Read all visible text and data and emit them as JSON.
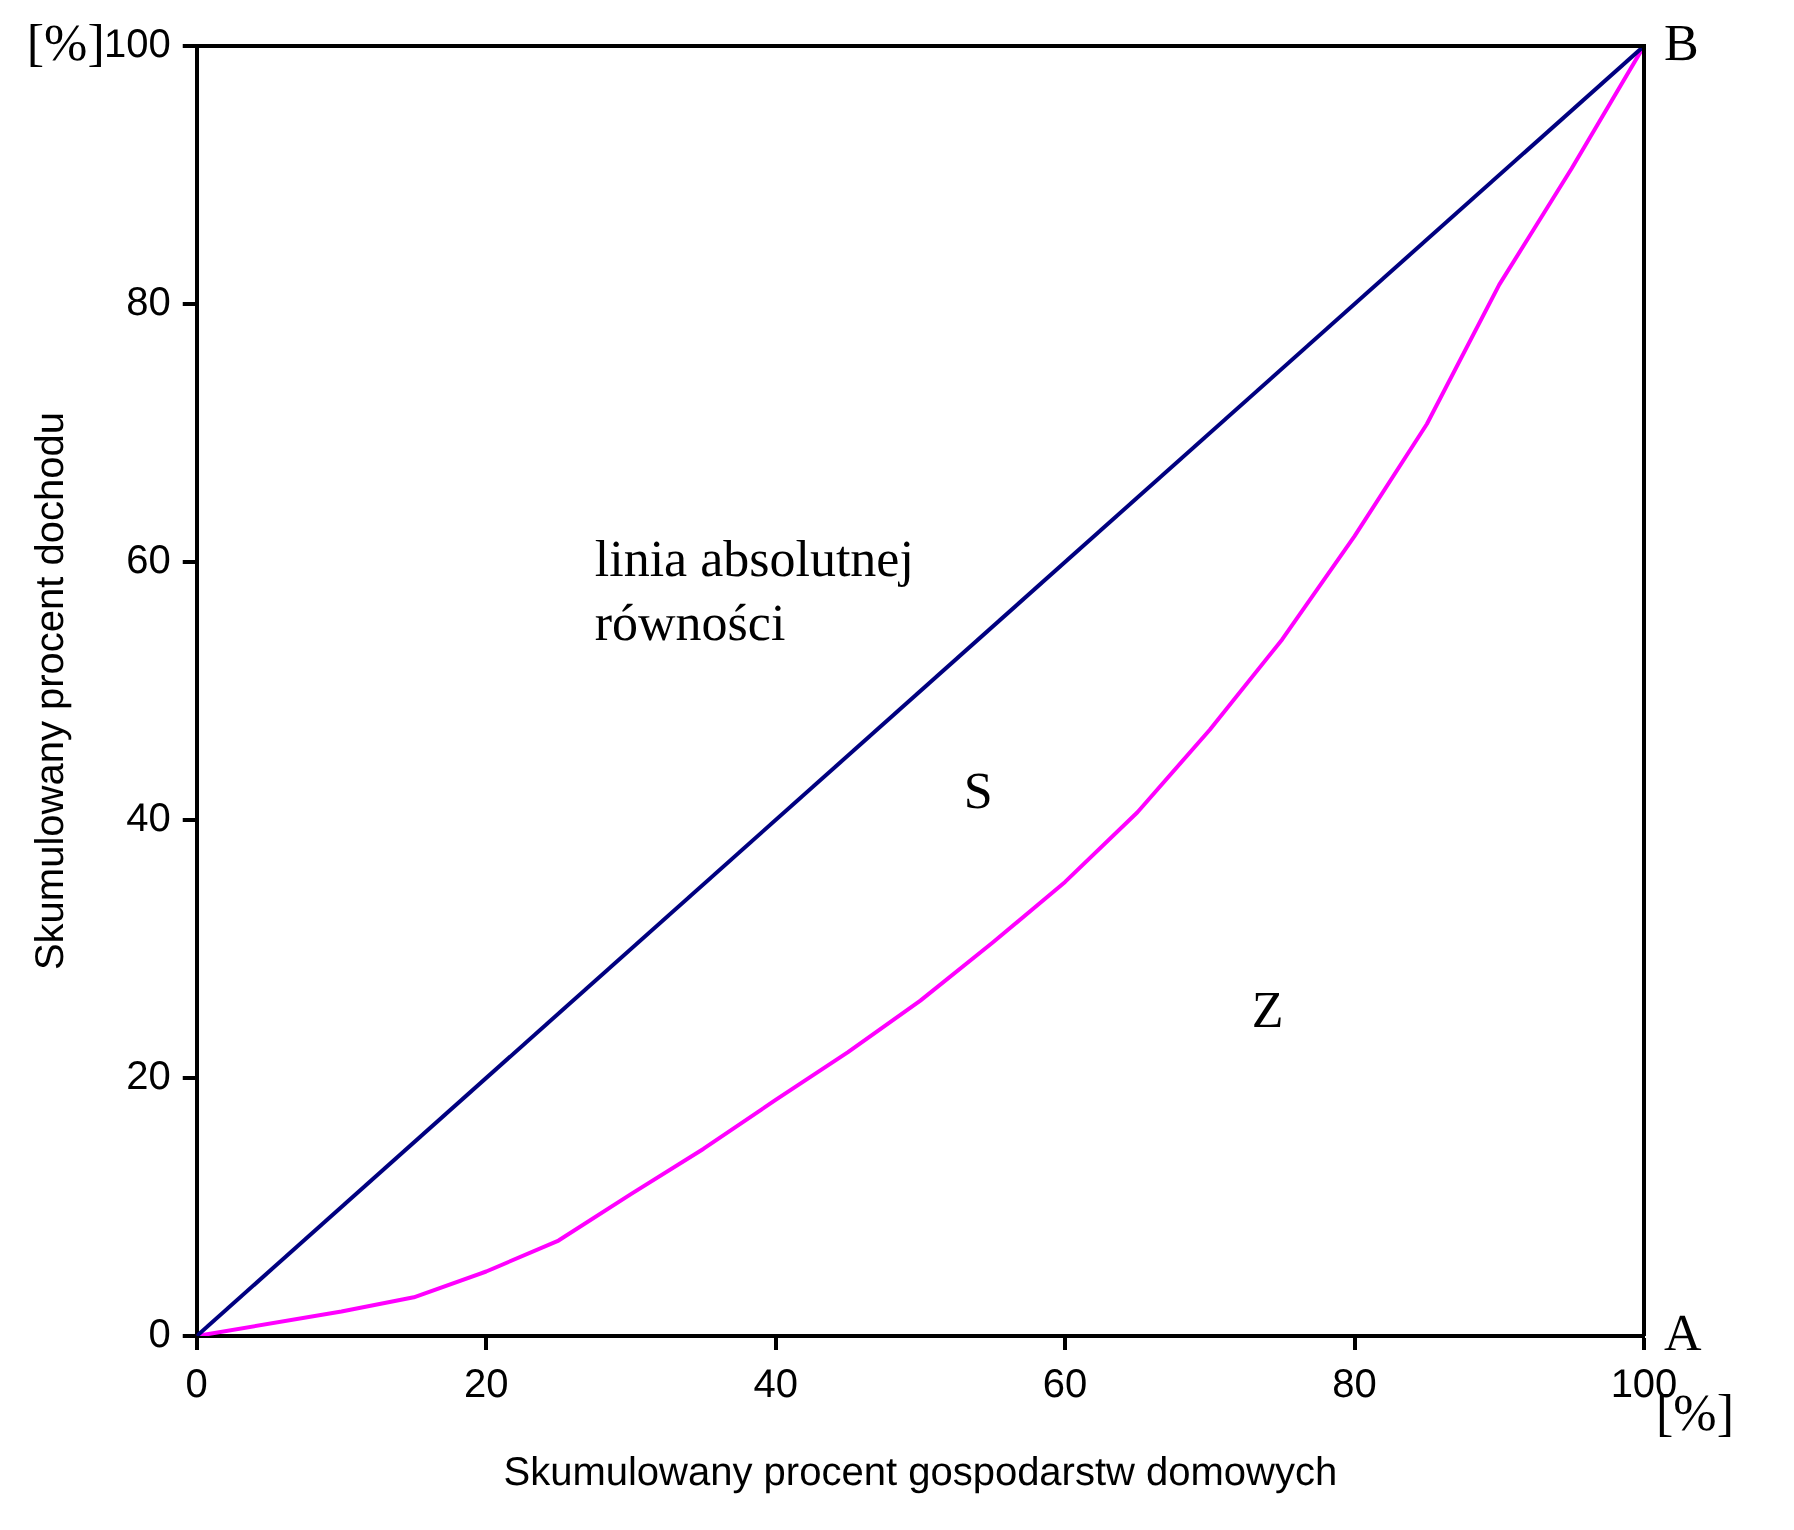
{
  "chart_data": {
    "type": "line",
    "xlabel": "Skumulowany procent gospodarstw domowych",
    "ylabel": "Skumulowany procent dochodu",
    "xlim": [
      0,
      100
    ],
    "ylim": [
      0,
      100
    ],
    "xticks": [
      0,
      20,
      40,
      60,
      80,
      100
    ],
    "yticks": [
      0,
      20,
      40,
      60,
      80,
      100
    ],
    "grid": false,
    "legend": false,
    "marker": "none",
    "line_style": "solid",
    "series": [
      {
        "color": "#000080",
        "x": [
          0,
          100
        ],
        "values": [
          0,
          100
        ]
      },
      {
        "color": "#ff00ff",
        "x": [
          0,
          10,
          15,
          20,
          25,
          30,
          35,
          40,
          45,
          50,
          55,
          60,
          65,
          70,
          75,
          80,
          85,
          90,
          95,
          100
        ],
        "values": [
          0,
          1.9,
          3.0,
          5.0,
          7.4,
          11,
          14.5,
          18.3,
          22,
          26,
          30.5,
          35.2,
          40.6,
          47,
          54,
          62,
          70.7,
          81.5,
          90.5,
          100
        ]
      }
    ],
    "annotations": [
      "[%]",
      "[%]",
      "linia absolutnej równości",
      "S",
      "Z",
      "A",
      "B"
    ]
  }
}
